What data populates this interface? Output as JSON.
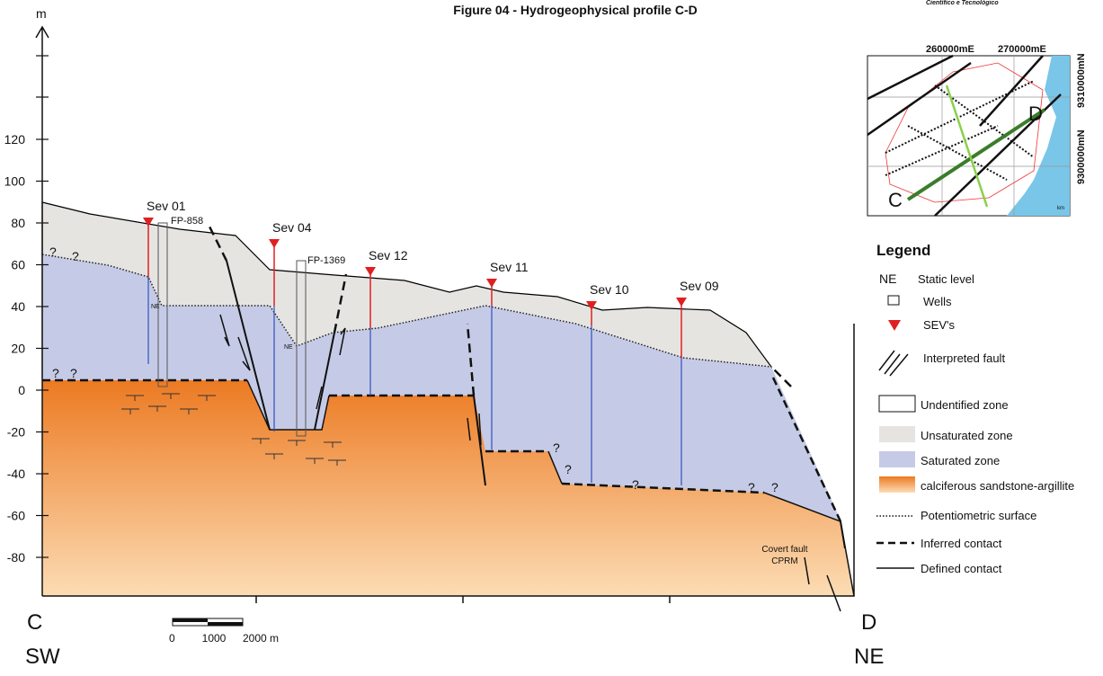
{
  "header": {
    "title": "Figure 04 - Hydrogeophysical profile C-D",
    "logo_text": "Científico e Tecnológico"
  },
  "axis": {
    "unit": "m",
    "ticks": [
      "120",
      "100",
      "80",
      "60",
      "40",
      "20",
      "0",
      "-20",
      "-40",
      "-60",
      "-80"
    ]
  },
  "profile": {
    "start": "C",
    "start_direction": "SW",
    "end": "D",
    "end_direction": "NE",
    "sevs": [
      "Sev 01",
      "Sev 04",
      "Sev 12",
      "Sev 11",
      "Sev 10",
      "Sev 09"
    ],
    "wells": [
      "FP-858",
      "FP-1369"
    ],
    "static_levels": [
      "NE",
      "NE"
    ],
    "question_marks": [
      "?",
      "?",
      "?",
      "?",
      "?",
      "?",
      "?",
      "?",
      "?"
    ],
    "fault_note": [
      "Covert fault",
      "CPRM"
    ]
  },
  "scale_bar": {
    "labels": [
      "0",
      "1000",
      "2000 m"
    ]
  },
  "map": {
    "eastings": [
      "260000mE",
      "270000mE"
    ],
    "northings": [
      "9310000mN",
      "9300000mN"
    ],
    "start": "C",
    "end": "D",
    "unit": "km"
  },
  "legend": {
    "title": "Legend",
    "static_level_symbol": "NE",
    "items": [
      "Static level",
      "Wells",
      "SEV's",
      "Interpreted fault",
      "Undentified zone",
      "Unsaturated zone",
      "Saturated zone",
      "calciferous sandstone-argillite",
      "Potentiometric surface",
      "Inferred contact",
      "Defined contact"
    ]
  }
}
